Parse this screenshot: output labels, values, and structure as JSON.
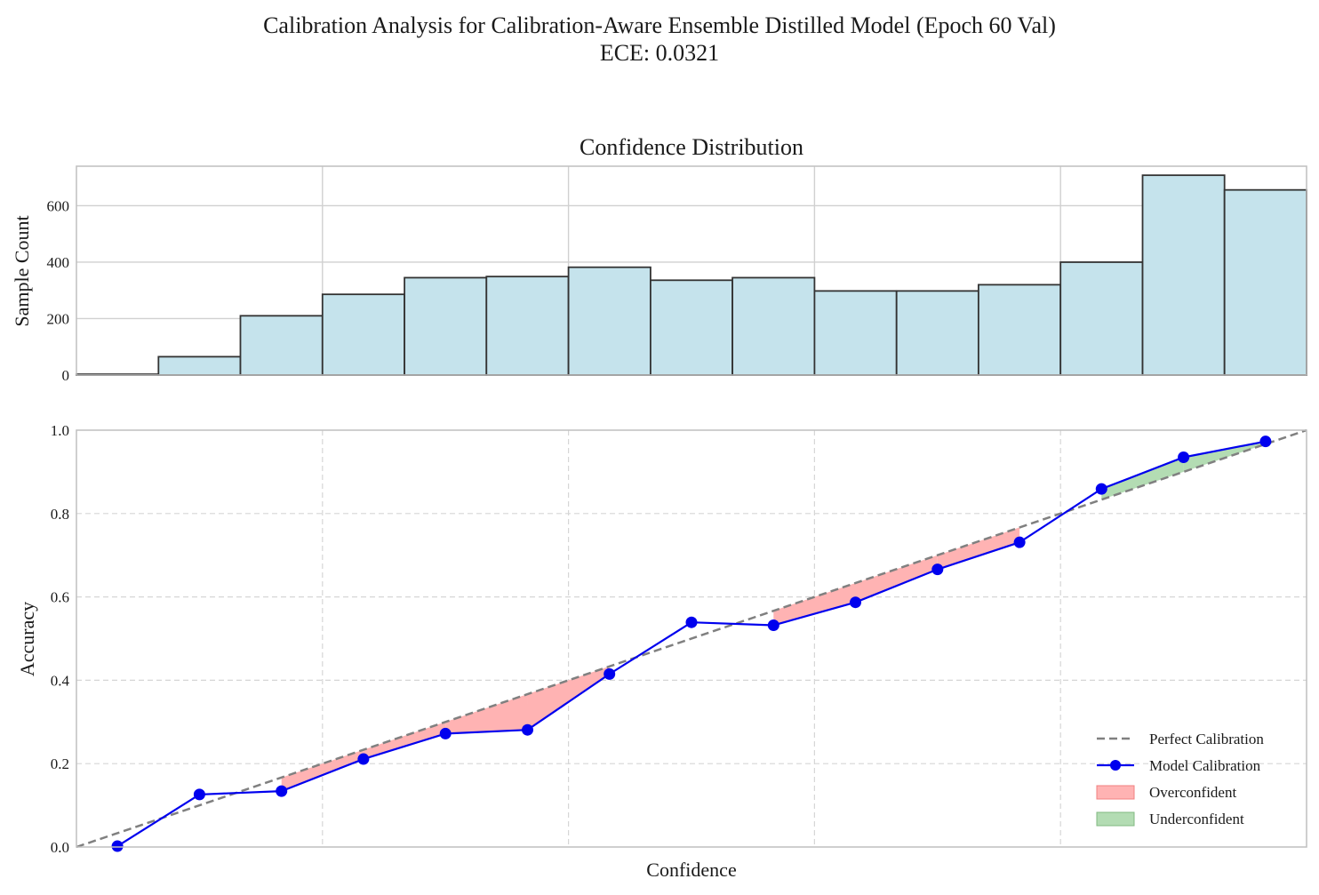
{
  "figure": {
    "suptitle": "Calibration Analysis for Calibration-Aware Ensemble Distilled Model (Epoch 60 Val)",
    "subtitle": "ECE: 0.0321"
  },
  "chart_data": [
    {
      "type": "bar",
      "title": "Confidence Distribution",
      "xlabel": "",
      "ylabel": "Sample Count",
      "bin_edges": [
        0.0,
        0.0667,
        0.1333,
        0.2,
        0.2667,
        0.3333,
        0.4,
        0.4667,
        0.5333,
        0.6,
        0.6667,
        0.7333,
        0.8,
        0.8667,
        0.9333,
        1.0
      ],
      "values": [
        3,
        65,
        210,
        286,
        345,
        349,
        382,
        336,
        345,
        298,
        298,
        320,
        400,
        708,
        656
      ],
      "xlim": [
        0,
        1
      ],
      "ylim": [
        0,
        740
      ],
      "yticks": [
        "0",
        "200",
        "400",
        "600"
      ],
      "bar_color": "#c5e3ec",
      "edge_color": "#333333",
      "grid": true
    },
    {
      "type": "line",
      "title": "",
      "xlabel": "Confidence",
      "ylabel": "Accuracy",
      "xlim": [
        0,
        1
      ],
      "ylim": [
        0,
        1
      ],
      "yticks": [
        "0.0",
        "0.2",
        "0.4",
        "0.6",
        "0.8",
        "1.0"
      ],
      "grid": true,
      "legend_position": "bottom-right",
      "series": [
        {
          "name": "Perfect Calibration",
          "style": "dashed",
          "color": "#808080",
          "x": [
            0,
            1
          ],
          "y": [
            0,
            1
          ]
        },
        {
          "name": "Model Calibration",
          "style": "solid-markers",
          "color": "#0000ee",
          "x": [
            0.0333,
            0.1,
            0.1667,
            0.2333,
            0.3,
            0.3667,
            0.4333,
            0.5,
            0.5667,
            0.6333,
            0.7,
            0.7667,
            0.8333,
            0.9,
            0.9667
          ],
          "y": [
            0.002,
            0.126,
            0.134,
            0.211,
            0.272,
            0.281,
            0.415,
            0.539,
            0.532,
            0.587,
            0.666,
            0.731,
            0.859,
            0.935,
            0.973
          ]
        }
      ],
      "fills": [
        {
          "name": "Overconfident",
          "color": "#ff9999"
        },
        {
          "name": "Underconfident",
          "color": "#90c990"
        }
      ]
    }
  ]
}
